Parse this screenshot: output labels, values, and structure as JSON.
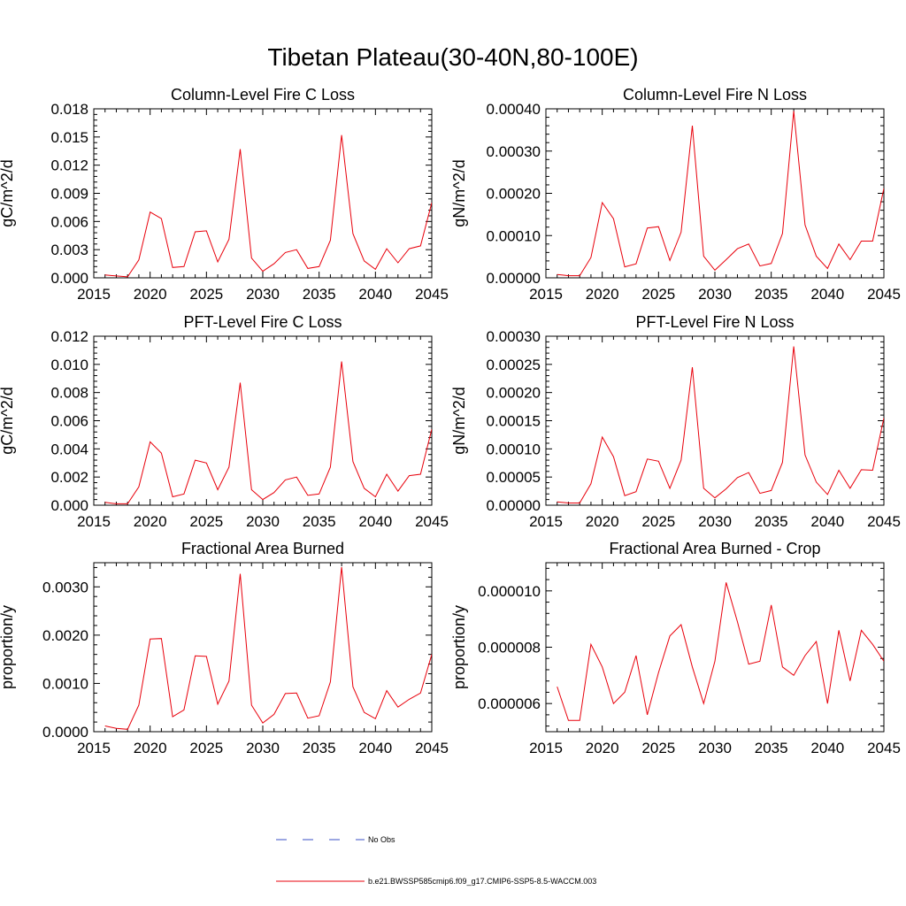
{
  "figure": {
    "title": "Tibetan Plateau(30-40N,80-100E)",
    "line_color": "#e8000b",
    "obs_color": "#3a4fc4",
    "legend": [
      {
        "label": "No Obs",
        "style": "dashed",
        "color": "#3a4fc4"
      },
      {
        "label": "b.e21.BWSSP585cmip6.f09_g17.CMIP6-SSP5-8.5-WACCM.003",
        "style": "solid",
        "color": "#e8000b"
      }
    ]
  },
  "chart_data": [
    {
      "type": "line",
      "title": "Column-Level Fire C Loss",
      "ylabel": "gC/m^2/d",
      "xlim": [
        2015,
        2045
      ],
      "ylim": [
        0,
        0.018
      ],
      "xticks": [
        2015,
        2020,
        2025,
        2030,
        2035,
        2040,
        2045
      ],
      "yticks": [
        0,
        0.003,
        0.006,
        0.009,
        0.012,
        0.015,
        0.018
      ],
      "yticklabels": [
        "0.000",
        "0.003",
        "0.006",
        "0.009",
        "0.012",
        "0.015",
        "0.018"
      ],
      "series": [
        {
          "name": "b.e21.BWSSP585cmip6.f09_g17.CMIP6-SSP5-8.5-WACCM.003",
          "x": [
            2016,
            2017,
            2018,
            2019,
            2020,
            2021,
            2022,
            2023,
            2024,
            2025,
            2026,
            2027,
            2028,
            2029,
            2030,
            2031,
            2032,
            2033,
            2034,
            2035,
            2036,
            2037,
            2038,
            2039,
            2040,
            2041,
            2042,
            2043,
            2044,
            2045
          ],
          "y": [
            0.0003,
            0.0002,
            0.0001,
            0.0019,
            0.007,
            0.0063,
            0.0011,
            0.0012,
            0.0049,
            0.005,
            0.0017,
            0.0041,
            0.0137,
            0.0021,
            0.0007,
            0.0015,
            0.0027,
            0.003,
            0.001,
            0.0012,
            0.004,
            0.0152,
            0.0047,
            0.0018,
            0.0009,
            0.0031,
            0.0016,
            0.0031,
            0.0034,
            0.008
          ]
        }
      ]
    },
    {
      "type": "line",
      "title": "Column-Level Fire N Loss",
      "ylabel": "gN/m^2/d",
      "xlim": [
        2015,
        2045
      ],
      "ylim": [
        0,
        0.0004
      ],
      "xticks": [
        2015,
        2020,
        2025,
        2030,
        2035,
        2040,
        2045
      ],
      "yticks": [
        0,
        0.0001,
        0.0002,
        0.0003,
        0.0004
      ],
      "yticklabels": [
        "0.00000",
        "0.00010",
        "0.00020",
        "0.00030",
        "0.00040"
      ],
      "series": [
        {
          "name": "b.e21.BWSSP585cmip6.f09_g17.CMIP6-SSP5-8.5-WACCM.003",
          "x": [
            2016,
            2017,
            2018,
            2019,
            2020,
            2021,
            2022,
            2023,
            2024,
            2025,
            2026,
            2027,
            2028,
            2029,
            2030,
            2031,
            2032,
            2033,
            2034,
            2035,
            2036,
            2037,
            2038,
            2039,
            2040,
            2041,
            2042,
            2043,
            2044,
            2045
          ],
          "y": [
            8e-06,
            5e-06,
            5e-06,
            4.8e-05,
            0.000178,
            0.00014,
            2.6e-05,
            3.3e-05,
            0.000118,
            0.000121,
            4.1e-05,
            0.000108,
            0.00036,
            5.1e-05,
            1.8e-05,
            4.3e-05,
            6.9e-05,
            8e-05,
            2.8e-05,
            3.4e-05,
            0.000105,
            0.000395,
            0.000125,
            5.1e-05,
            2.2e-05,
            8e-05,
            4.3e-05,
            8.7e-05,
            8.7e-05,
            0.000212
          ]
        }
      ]
    },
    {
      "type": "line",
      "title": "PFT-Level Fire C Loss",
      "ylabel": "gC/m^2/d",
      "xlim": [
        2015,
        2045
      ],
      "ylim": [
        0,
        0.012
      ],
      "xticks": [
        2015,
        2020,
        2025,
        2030,
        2035,
        2040,
        2045
      ],
      "yticks": [
        0,
        0.002,
        0.004,
        0.006,
        0.008,
        0.01,
        0.012
      ],
      "yticklabels": [
        "0.000",
        "0.002",
        "0.004",
        "0.006",
        "0.008",
        "0.010",
        "0.012"
      ],
      "series": [
        {
          "name": "b.e21.BWSSP585cmip6.f09_g17.CMIP6-SSP5-8.5-WACCM.003",
          "x": [
            2016,
            2017,
            2018,
            2019,
            2020,
            2021,
            2022,
            2023,
            2024,
            2025,
            2026,
            2027,
            2028,
            2029,
            2030,
            2031,
            2032,
            2033,
            2034,
            2035,
            2036,
            2037,
            2038,
            2039,
            2040,
            2041,
            2042,
            2043,
            2044,
            2045
          ],
          "y": [
            0.0002,
            0.0001,
            0.0001,
            0.0013,
            0.0045,
            0.0037,
            0.0006,
            0.0008,
            0.0032,
            0.003,
            0.0011,
            0.0027,
            0.0087,
            0.0011,
            0.0004,
            0.0009,
            0.0018,
            0.002,
            0.0007,
            0.0008,
            0.0027,
            0.0102,
            0.0031,
            0.0012,
            0.0006,
            0.0022,
            0.001,
            0.0021,
            0.0022,
            0.0054
          ]
        }
      ]
    },
    {
      "type": "line",
      "title": "PFT-Level Fire N Loss",
      "ylabel": "gN/m^2/d",
      "xlim": [
        2015,
        2045
      ],
      "ylim": [
        0,
        0.0003
      ],
      "xticks": [
        2015,
        2020,
        2025,
        2030,
        2035,
        2040,
        2045
      ],
      "yticks": [
        0,
        5e-05,
        0.0001,
        0.00015,
        0.0002,
        0.00025,
        0.0003
      ],
      "yticklabels": [
        "0.00000",
        "0.00005",
        "0.00010",
        "0.00015",
        "0.00020",
        "0.00025",
        "0.00030"
      ],
      "series": [
        {
          "name": "b.e21.BWSSP585cmip6.f09_g17.CMIP6-SSP5-8.5-WACCM.003",
          "x": [
            2016,
            2017,
            2018,
            2019,
            2020,
            2021,
            2022,
            2023,
            2024,
            2025,
            2026,
            2027,
            2028,
            2029,
            2030,
            2031,
            2032,
            2033,
            2034,
            2035,
            2036,
            2037,
            2038,
            2039,
            2040,
            2041,
            2042,
            2043,
            2044,
            2045
          ],
          "y": [
            6e-06,
            4e-06,
            4e-06,
            3.8e-05,
            0.000121,
            8.6e-05,
            1.7e-05,
            2.4e-05,
            8.2e-05,
            7.8e-05,
            3e-05,
            8e-05,
            0.000245,
            3e-05,
            1.3e-05,
            2.9e-05,
            4.9e-05,
            5.8e-05,
            2.1e-05,
            2.6e-05,
            7.6e-05,
            0.000282,
            8.9e-05,
            4.1e-05,
            1.9e-05,
            6.2e-05,
            3e-05,
            6.3e-05,
            6.2e-05,
            0.000155
          ]
        }
      ]
    },
    {
      "type": "line",
      "title": "Fractional Area Burned",
      "ylabel": "proportion/y",
      "xlim": [
        2015,
        2045
      ],
      "ylim": [
        0,
        0.0035
      ],
      "xticks": [
        2015,
        2020,
        2025,
        2030,
        2035,
        2040,
        2045
      ],
      "yticks": [
        0,
        0.001,
        0.002,
        0.003
      ],
      "yticklabels": [
        "0.0000",
        "0.0010",
        "0.0020",
        "0.0030"
      ],
      "series": [
        {
          "name": "b.e21.BWSSP585cmip6.f09_g17.CMIP6-SSP5-8.5-WACCM.003",
          "x": [
            2016,
            2017,
            2018,
            2019,
            2020,
            2021,
            2022,
            2023,
            2024,
            2025,
            2026,
            2027,
            2028,
            2029,
            2030,
            2031,
            2032,
            2033,
            2034,
            2035,
            2036,
            2037,
            2038,
            2039,
            2040,
            2041,
            2042,
            2043,
            2044,
            2045
          ],
          "y": [
            0.00012,
            7e-05,
            5e-05,
            0.00055,
            0.00192,
            0.00193,
            0.00031,
            0.00045,
            0.00157,
            0.00156,
            0.00057,
            0.00105,
            0.00327,
            0.00055,
            0.00018,
            0.00036,
            0.00079,
            0.0008,
            0.00028,
            0.00033,
            0.00103,
            0.00341,
            0.00093,
            0.0004,
            0.00027,
            0.00085,
            0.00051,
            0.00067,
            0.0008,
            0.0016
          ]
        }
      ]
    },
    {
      "type": "line",
      "title": "Fractional Area Burned - Crop",
      "ylabel": "proportion/y",
      "xlim": [
        2015,
        2045
      ],
      "ylim": [
        5e-06,
        1.1e-05
      ],
      "xticks": [
        2015,
        2020,
        2025,
        2030,
        2035,
        2040,
        2045
      ],
      "yticks": [
        6e-06,
        8e-06,
        1e-05
      ],
      "yticklabels": [
        "0.000006",
        "0.000008",
        "0.000010"
      ],
      "series": [
        {
          "name": "b.e21.BWSSP585cmip6.f09_g17.CMIP6-SSP5-8.5-WACCM.003",
          "x": [
            2016,
            2017,
            2018,
            2019,
            2020,
            2021,
            2022,
            2023,
            2024,
            2025,
            2026,
            2027,
            2028,
            2029,
            2030,
            2031,
            2032,
            2033,
            2034,
            2035,
            2036,
            2037,
            2038,
            2039,
            2040,
            2041,
            2042,
            2043,
            2044,
            2045
          ],
          "y": [
            6.6e-06,
            5.4e-06,
            5.4e-06,
            8.1e-06,
            7.3e-06,
            6e-06,
            6.4e-06,
            7.7e-06,
            5.6e-06,
            7.1e-06,
            8.4e-06,
            8.8e-06,
            7.3e-06,
            6e-06,
            7.5e-06,
            1.03e-05,
            8.9e-06,
            7.4e-06,
            7.5e-06,
            9.5e-06,
            7.3e-06,
            7e-06,
            7.7e-06,
            8.2e-06,
            6e-06,
            8.6e-06,
            6.8e-06,
            8.6e-06,
            8.1e-06,
            7.5e-06
          ]
        }
      ]
    }
  ]
}
